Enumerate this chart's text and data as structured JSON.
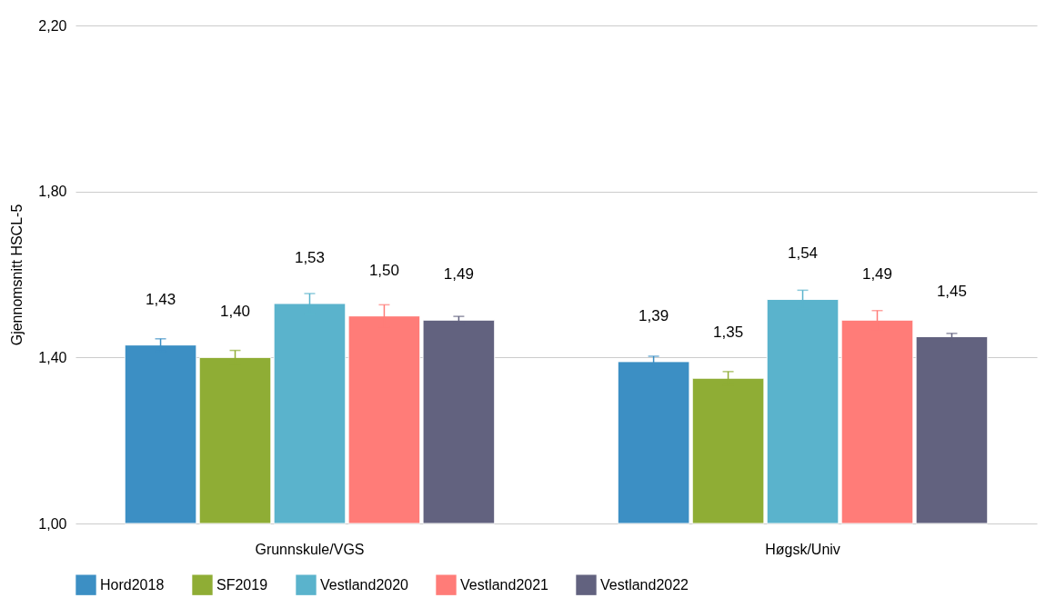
{
  "chart_data": {
    "type": "bar",
    "ylabel": "Gjennomsnitt HSCL-5",
    "categories": [
      "Grunnskule/VGS",
      "Høgsk/Univ"
    ],
    "series": [
      {
        "name": "Hord2018",
        "color": "#3c8fc4",
        "values": [
          1.43,
          1.39
        ],
        "errors": [
          0.015,
          0.013
        ],
        "value_labels": [
          "1,43",
          "1,39"
        ]
      },
      {
        "name": "SF2019",
        "color": "#8fad35",
        "values": [
          1.4,
          1.35
        ],
        "errors": [
          0.017,
          0.016
        ],
        "value_labels": [
          "1,40",
          "1,35"
        ]
      },
      {
        "name": "Vestland2020",
        "color": "#5ab3cc",
        "values": [
          1.53,
          1.54
        ],
        "errors": [
          0.024,
          0.022
        ],
        "value_labels": [
          "1,53",
          "1,54"
        ]
      },
      {
        "name": "Vestland2021",
        "color": "#ff7c78",
        "values": [
          1.5,
          1.49
        ],
        "errors": [
          0.027,
          0.023
        ],
        "value_labels": [
          "1,50",
          "1,49"
        ]
      },
      {
        "name": "Vestland2022",
        "color": "#62627f",
        "values": [
          1.49,
          1.45
        ],
        "errors": [
          0.009,
          0.008
        ],
        "value_labels": [
          "1,49",
          "1,45"
        ]
      }
    ],
    "ylim": [
      1.0,
      2.2
    ],
    "yticks": [
      {
        "value": 1.0,
        "label": "1,00"
      },
      {
        "value": 1.4,
        "label": "1,40"
      },
      {
        "value": 1.8,
        "label": "1,80"
      },
      {
        "value": 2.2,
        "label": "2,20"
      }
    ],
    "grid": "y",
    "legend": "bottom"
  }
}
